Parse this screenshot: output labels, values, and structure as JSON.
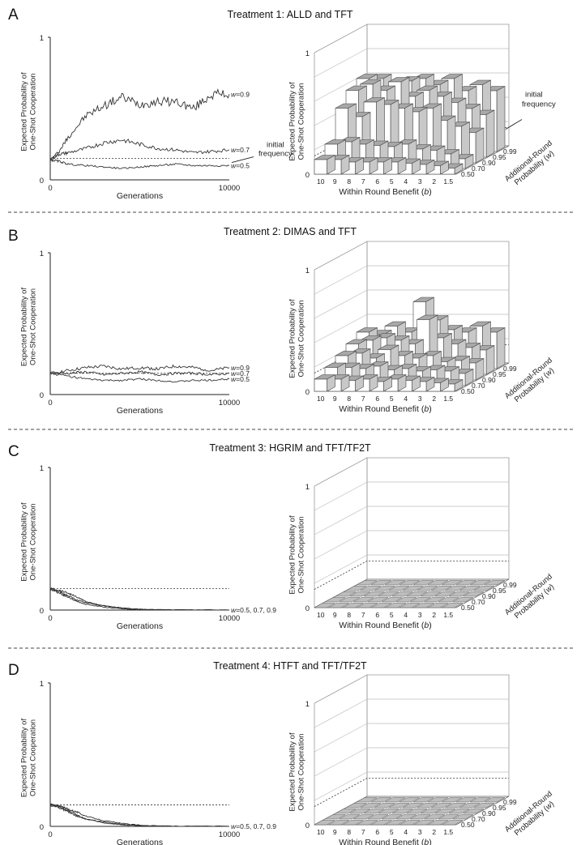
{
  "chart_data": [
    {
      "panel": "A",
      "title": "Treatment 1: ALLD and TFT",
      "line_chart": {
        "type": "line",
        "xlabel": "Generations",
        "ylabel": [
          "Expected Probability of",
          "One-Shot Cooperation"
        ],
        "xlim": [
          0,
          10000
        ],
        "ylim": [
          0,
          1
        ],
        "xticks": [
          "0",
          "10000"
        ],
        "yticks": [
          "0",
          "1"
        ],
        "initial_frequency": 0.15,
        "initial_label": [
          "initial",
          "frequency"
        ],
        "series": [
          {
            "name": "w=0.9",
            "x": [
              0,
              500,
              1000,
              2000,
              3000,
              4000,
              5000,
              6000,
              7000,
              8000,
              9000,
              10000
            ],
            "values": [
              0.14,
              0.2,
              0.3,
              0.45,
              0.52,
              0.58,
              0.53,
              0.55,
              0.55,
              0.5,
              0.6,
              0.6
            ]
          },
          {
            "name": "w=0.7",
            "x": [
              0,
              500,
              1000,
              2000,
              3000,
              4000,
              5000,
              6000,
              7000,
              8000,
              9000,
              10000
            ],
            "values": [
              0.14,
              0.18,
              0.19,
              0.22,
              0.26,
              0.28,
              0.25,
              0.22,
              0.21,
              0.19,
              0.2,
              0.21
            ]
          },
          {
            "name": "w=0.5",
            "x": [
              0,
              500,
              1000,
              2000,
              3000,
              4000,
              5000,
              6000,
              7000,
              8000,
              9000,
              10000
            ],
            "values": [
              0.14,
              0.13,
              0.11,
              0.1,
              0.09,
              0.08,
              0.09,
              0.1,
              0.11,
              0.1,
              0.1,
              0.1
            ]
          }
        ]
      },
      "bar3d": {
        "type": "bar",
        "xlabel": "Within Round Benefit (b)",
        "ylabel_depth": [
          "Additional-Round",
          "Probability (w)"
        ],
        "zlabel": [
          "Expected Probability of",
          "One-Shot Cooperation"
        ],
        "zlim": [
          0,
          1
        ],
        "zticks": [
          "0",
          "1"
        ],
        "categories": [
          "10",
          "9",
          "8",
          "7",
          "6",
          "5",
          "4",
          "3",
          "2",
          "1.5"
        ],
        "depth_categories": [
          "0.50",
          "0.70",
          "0.90",
          "0.95",
          "0.99"
        ],
        "initial_frequency": 0.15,
        "initial_label": [
          "initial",
          "frequency"
        ],
        "series": [
          {
            "name": "0.50",
            "values": [
              0.12,
              0.12,
              0.1,
              0.1,
              0.1,
              0.1,
              0.09,
              0.08,
              0.07,
              0.05
            ]
          },
          {
            "name": "0.70",
            "values": [
              0.2,
              0.22,
              0.2,
              0.19,
              0.18,
              0.2,
              0.16,
              0.15,
              0.12,
              0.08
            ]
          },
          {
            "name": "0.90",
            "values": [
              0.45,
              0.38,
              0.5,
              0.48,
              0.45,
              0.42,
              0.45,
              0.35,
              0.3,
              0.25
            ]
          },
          {
            "name": "0.95",
            "values": [
              0.55,
              0.6,
              0.55,
              0.62,
              0.5,
              0.55,
              0.5,
              0.45,
              0.4,
              0.35
            ]
          },
          {
            "name": "0.99",
            "values": [
              0.6,
              0.6,
              0.55,
              0.58,
              0.6,
              0.55,
              0.6,
              0.5,
              0.55,
              0.5
            ]
          }
        ]
      }
    },
    {
      "panel": "B",
      "title": "Treatment 2: DIMAS and TFT",
      "line_chart": {
        "type": "line",
        "xlabel": "Generations",
        "ylabel": [
          "Expected Probability of",
          "One-Shot Cooperation"
        ],
        "xlim": [
          0,
          10000
        ],
        "ylim": [
          0,
          1
        ],
        "xticks": [
          "0",
          "10000"
        ],
        "yticks": [
          "0",
          "1"
        ],
        "initial_frequency": 0.15,
        "series": [
          {
            "name": "w=0.9",
            "x": [
              0,
              1000,
              2000,
              3000,
              4000,
              5000,
              6000,
              7000,
              8000,
              9000,
              10000
            ],
            "values": [
              0.15,
              0.17,
              0.19,
              0.2,
              0.18,
              0.19,
              0.18,
              0.2,
              0.19,
              0.17,
              0.19
            ]
          },
          {
            "name": "w=0.7",
            "x": [
              0,
              1000,
              2000,
              3000,
              4000,
              5000,
              6000,
              7000,
              8000,
              9000,
              10000
            ],
            "values": [
              0.15,
              0.15,
              0.16,
              0.14,
              0.15,
              0.16,
              0.14,
              0.15,
              0.15,
              0.14,
              0.15
            ]
          },
          {
            "name": "w=0.5",
            "x": [
              0,
              1000,
              2000,
              3000,
              4000,
              5000,
              6000,
              7000,
              8000,
              9000,
              10000
            ],
            "values": [
              0.15,
              0.13,
              0.11,
              0.1,
              0.1,
              0.11,
              0.1,
              0.09,
              0.1,
              0.1,
              0.11
            ]
          }
        ]
      },
      "bar3d": {
        "type": "bar",
        "xlabel": "Within Round Benefit (b)",
        "ylabel_depth": [
          "Additional-Round",
          "Probability (w)"
        ],
        "zlabel": [
          "Expected Probability of",
          "One-Shot Cooperation"
        ],
        "zlim": [
          0,
          1
        ],
        "zticks": [
          "0",
          "1"
        ],
        "categories": [
          "10",
          "9",
          "8",
          "7",
          "6",
          "5",
          "4",
          "3",
          "2",
          "1.5"
        ],
        "depth_categories": [
          "0.50",
          "0.70",
          "0.90",
          "0.95",
          "0.99"
        ],
        "initial_frequency": 0.15,
        "series": [
          {
            "name": "0.50",
            "values": [
              0.1,
              0.1,
              0.09,
              0.1,
              0.08,
              0.1,
              0.09,
              0.08,
              0.07,
              0.06
            ]
          },
          {
            "name": "0.70",
            "values": [
              0.15,
              0.15,
              0.14,
              0.16,
              0.13,
              0.14,
              0.12,
              0.13,
              0.12,
              0.1
            ]
          },
          {
            "name": "0.90",
            "values": [
              0.2,
              0.22,
              0.18,
              0.25,
              0.2,
              0.18,
              0.2,
              0.15,
              0.16,
              0.14
            ]
          },
          {
            "name": "0.95",
            "values": [
              0.25,
              0.28,
              0.3,
              0.28,
              0.25,
              0.45,
              0.3,
              0.25,
              0.22,
              0.2
            ]
          },
          {
            "name": "0.99",
            "values": [
              0.3,
              0.28,
              0.35,
              0.3,
              0.55,
              0.4,
              0.32,
              0.3,
              0.35,
              0.3
            ]
          }
        ]
      }
    },
    {
      "panel": "C",
      "title": "Treatment 3: HGRIM and TFT/TF2T",
      "line_chart": {
        "type": "line",
        "xlabel": "Generations",
        "ylabel": [
          "Expected Probability of",
          "One-Shot Cooperation"
        ],
        "xlim": [
          0,
          10000
        ],
        "ylim": [
          0,
          1
        ],
        "xticks": [
          "0",
          "10000"
        ],
        "yticks": [
          "0",
          "1"
        ],
        "initial_frequency": 0.15,
        "series_label": "w=0.5, 0.7, 0.9",
        "series": [
          {
            "name": "w=0.5",
            "x": [
              0,
              500,
              1000,
              1500,
              2000,
              3000,
              4000,
              5000,
              7000,
              10000
            ],
            "values": [
              0.15,
              0.12,
              0.09,
              0.06,
              0.04,
              0.02,
              0.01,
              0.005,
              0.0,
              0.0
            ]
          },
          {
            "name": "w=0.7",
            "x": [
              0,
              500,
              1000,
              1500,
              2000,
              3000,
              4000,
              5000,
              7000,
              10000
            ],
            "values": [
              0.15,
              0.13,
              0.1,
              0.07,
              0.05,
              0.03,
              0.01,
              0.005,
              0.0,
              0.0
            ]
          },
          {
            "name": "w=0.9",
            "x": [
              0,
              500,
              1000,
              1500,
              2000,
              3000,
              4000,
              5000,
              7000,
              10000
            ],
            "values": [
              0.15,
              0.14,
              0.12,
              0.09,
              0.06,
              0.03,
              0.015,
              0.005,
              0.0,
              0.0
            ]
          }
        ]
      },
      "bar3d": {
        "type": "bar",
        "xlabel": "Within Round Benefit (b)",
        "ylabel_depth": [
          "Additional-Round",
          "Probability (w)"
        ],
        "zlabel": [
          "Expected Probability of",
          "One-Shot Cooperation"
        ],
        "zlim": [
          0,
          1
        ],
        "zticks": [
          "0",
          "1"
        ],
        "categories": [
          "10",
          "9",
          "8",
          "7",
          "6",
          "5",
          "4",
          "3",
          "2",
          "1.5"
        ],
        "depth_categories": [
          "0.50",
          "0.70",
          "0.90",
          "0.95",
          "0.99"
        ],
        "initial_frequency": 0.15,
        "series": [
          {
            "name": "0.50",
            "values": [
              0,
              0,
              0,
              0,
              0,
              0,
              0,
              0,
              0,
              0
            ]
          },
          {
            "name": "0.70",
            "values": [
              0,
              0,
              0,
              0,
              0,
              0,
              0,
              0,
              0,
              0
            ]
          },
          {
            "name": "0.90",
            "values": [
              0,
              0,
              0,
              0,
              0,
              0,
              0,
              0,
              0,
              0
            ]
          },
          {
            "name": "0.95",
            "values": [
              0,
              0,
              0,
              0,
              0,
              0,
              0,
              0,
              0,
              0
            ]
          },
          {
            "name": "0.99",
            "values": [
              0,
              0,
              0,
              0,
              0,
              0,
              0,
              0,
              0,
              0
            ]
          }
        ]
      }
    },
    {
      "panel": "D",
      "title": "Treatment 4: HTFT and TFT/TF2T",
      "line_chart": {
        "type": "line",
        "xlabel": "Generations",
        "ylabel": [
          "Expected Probability of",
          "One-Shot Cooperation"
        ],
        "xlim": [
          0,
          10000
        ],
        "ylim": [
          0,
          1
        ],
        "xticks": [
          "0",
          "10000"
        ],
        "yticks": [
          "0",
          "1"
        ],
        "initial_frequency": 0.15,
        "series_label": "w=0.5, 0.7, 0.9",
        "series": [
          {
            "name": "w=0.5",
            "x": [
              0,
              500,
              1000,
              1500,
              2000,
              3000,
              4000,
              5000,
              7000,
              10000
            ],
            "values": [
              0.15,
              0.13,
              0.1,
              0.07,
              0.05,
              0.025,
              0.01,
              0.005,
              0.0,
              0.0
            ]
          },
          {
            "name": "w=0.7",
            "x": [
              0,
              500,
              1000,
              1500,
              2000,
              3000,
              4000,
              5000,
              7000,
              10000
            ],
            "values": [
              0.15,
              0.14,
              0.11,
              0.08,
              0.05,
              0.03,
              0.015,
              0.005,
              0.0,
              0.0
            ]
          },
          {
            "name": "w=0.9",
            "x": [
              0,
              500,
              1000,
              1500,
              2000,
              3000,
              4000,
              5000,
              7000,
              10000
            ],
            "values": [
              0.15,
              0.14,
              0.12,
              0.1,
              0.07,
              0.04,
              0.02,
              0.008,
              0.0,
              0.0
            ]
          }
        ]
      },
      "bar3d": {
        "type": "bar",
        "xlabel": "Within Round Benefit (b)",
        "ylabel_depth": [
          "Additional-Round",
          "Probability (w)"
        ],
        "zlabel": [
          "Expected Probability of",
          "One-Shot Cooperation"
        ],
        "zlim": [
          0,
          1
        ],
        "zticks": [
          "0",
          "1"
        ],
        "categories": [
          "10",
          "9",
          "8",
          "7",
          "6",
          "5",
          "4",
          "3",
          "2",
          "1.5"
        ],
        "depth_categories": [
          "0.50",
          "0.70",
          "0.90",
          "0.95",
          "0.99"
        ],
        "initial_frequency": 0.15,
        "series": [
          {
            "name": "0.50",
            "values": [
              0,
              0,
              0,
              0,
              0,
              0,
              0,
              0,
              0,
              0
            ]
          },
          {
            "name": "0.70",
            "values": [
              0,
              0,
              0,
              0,
              0,
              0,
              0,
              0,
              0,
              0
            ]
          },
          {
            "name": "0.90",
            "values": [
              0,
              0,
              0,
              0,
              0,
              0,
              0,
              0,
              0,
              0
            ]
          },
          {
            "name": "0.95",
            "values": [
              0,
              0,
              0,
              0,
              0,
              0,
              0,
              0,
              0,
              0
            ]
          },
          {
            "name": "0.99",
            "values": [
              0,
              0,
              0,
              0,
              0,
              0,
              0,
              0,
              0,
              0
            ]
          }
        ]
      }
    }
  ]
}
